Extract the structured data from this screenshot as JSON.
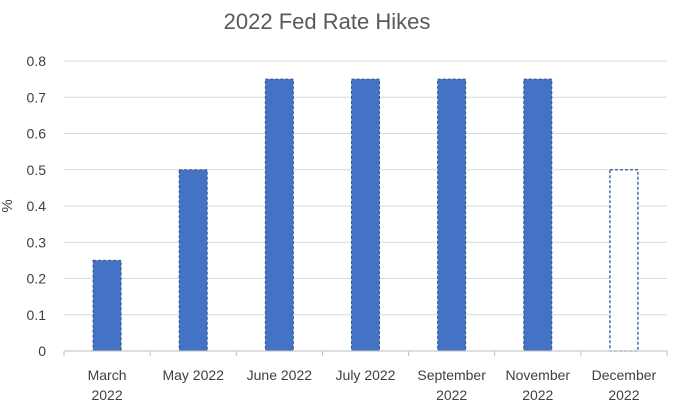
{
  "chart_data": {
    "type": "bar",
    "title": "2022 Fed Rate Hikes",
    "xlabel": "",
    "ylabel": "%",
    "ylim": [
      0,
      0.8
    ],
    "yticks": [
      "0",
      "0.1",
      "0.2",
      "0.3",
      "0.4",
      "0.5",
      "0.6",
      "0.7",
      "0.8"
    ],
    "grid": true,
    "legend": "none",
    "categories": [
      [
        "March",
        "2022"
      ],
      [
        "May 2022"
      ],
      [
        "June 2022"
      ],
      [
        "July 2022"
      ],
      [
        "September",
        "2022"
      ],
      [
        "November",
        "2022"
      ],
      [
        "December",
        "2022"
      ]
    ],
    "values": [
      0.25,
      0.5,
      0.75,
      0.75,
      0.75,
      0.75,
      0.5
    ],
    "bar_styles": [
      "filled",
      "filled",
      "filled",
      "filled",
      "filled",
      "filled",
      "outline"
    ],
    "colors": {
      "bar": "#4472C4",
      "grid": "#D9D9D9",
      "axis": "#BFBFBF",
      "outline": "#2F5597"
    }
  }
}
